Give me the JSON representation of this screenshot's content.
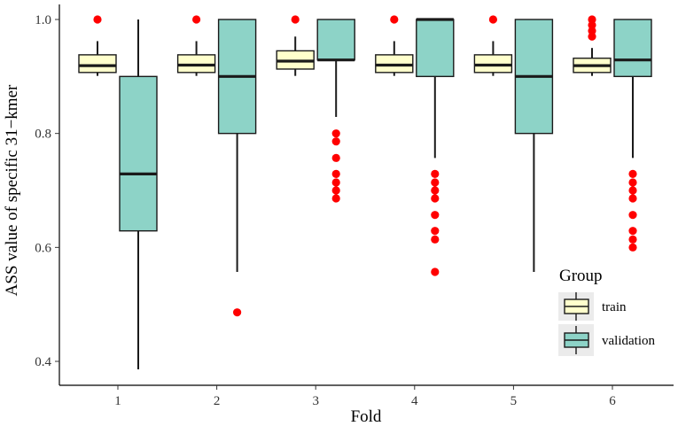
{
  "chart_data": {
    "type": "boxplot",
    "xlabel": "Fold",
    "ylabel": "ASS value of specific 31−kmer",
    "ylim": [
      0.38,
      1.02
    ],
    "yticks": [
      0.4,
      0.6,
      0.8,
      1.0
    ],
    "ytick_labels": [
      "0.4",
      "0.6",
      "0.8",
      "1.0"
    ],
    "categories": [
      "1",
      "2",
      "3",
      "4",
      "5",
      "6"
    ],
    "grid": false,
    "legend": {
      "title": "Group",
      "position": "right"
    },
    "series": [
      {
        "name": "train",
        "color": "#FFFFCC",
        "boxes": [
          {
            "fold": "1",
            "whisker_low": 0.901,
            "q1": 0.907,
            "median": 0.919,
            "q3": 0.938,
            "whisker_high": 0.962,
            "outliers": [
              1.0
            ]
          },
          {
            "fold": "2",
            "whisker_low": 0.901,
            "q1": 0.907,
            "median": 0.92,
            "q3": 0.938,
            "whisker_high": 0.962,
            "outliers": [
              1.0
            ]
          },
          {
            "fold": "3",
            "whisker_low": 0.901,
            "q1": 0.913,
            "median": 0.927,
            "q3": 0.945,
            "whisker_high": 0.97,
            "outliers": [
              1.0
            ]
          },
          {
            "fold": "4",
            "whisker_low": 0.901,
            "q1": 0.907,
            "median": 0.92,
            "q3": 0.938,
            "whisker_high": 0.962,
            "outliers": [
              1.0
            ]
          },
          {
            "fold": "5",
            "whisker_low": 0.901,
            "q1": 0.907,
            "median": 0.92,
            "q3": 0.938,
            "whisker_high": 0.962,
            "outliers": [
              1.0
            ]
          },
          {
            "fold": "6",
            "whisker_low": 0.901,
            "q1": 0.907,
            "median": 0.919,
            "q3": 0.932,
            "whisker_high": 0.95,
            "outliers": [
              1.0,
              0.99,
              0.98,
              0.97
            ]
          }
        ]
      },
      {
        "name": "validation",
        "color": "#8DD3C7",
        "boxes": [
          {
            "fold": "1",
            "whisker_low": 0.386,
            "q1": 0.629,
            "median": 0.729,
            "q3": 0.9,
            "whisker_high": 1.0,
            "outliers": []
          },
          {
            "fold": "2",
            "whisker_low": 0.557,
            "q1": 0.8,
            "median": 0.9,
            "q3": 1.0,
            "whisker_high": 1.0,
            "outliers": [
              0.486
            ]
          },
          {
            "fold": "3",
            "whisker_low": 0.829,
            "q1": 0.929,
            "median": 0.929,
            "q3": 1.0,
            "whisker_high": 1.0,
            "outliers": [
              0.8,
              0.786,
              0.757,
              0.729,
              0.714,
              0.7,
              0.686
            ]
          },
          {
            "fold": "4",
            "whisker_low": 0.757,
            "q1": 0.9,
            "median": 1.0,
            "q3": 1.0,
            "whisker_high": 1.0,
            "outliers": [
              0.729,
              0.714,
              0.7,
              0.686,
              0.657,
              0.629,
              0.614,
              0.557
            ]
          },
          {
            "fold": "5",
            "whisker_low": 0.557,
            "q1": 0.8,
            "median": 0.9,
            "q3": 1.0,
            "whisker_high": 1.0,
            "outliers": []
          },
          {
            "fold": "6",
            "whisker_low": 0.757,
            "q1": 0.9,
            "median": 0.929,
            "q3": 1.0,
            "whisker_high": 1.0,
            "outliers": [
              0.729,
              0.714,
              0.7,
              0.686,
              0.657,
              0.629,
              0.614,
              0.6
            ]
          }
        ]
      }
    ],
    "outlier_color": "#FF0000"
  }
}
